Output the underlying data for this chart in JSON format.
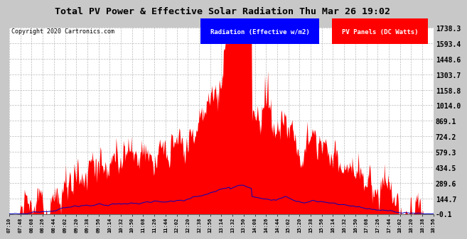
{
  "title": "Total PV Power & Effective Solar Radiation Thu Mar 26 19:02",
  "copyright": "Copyright 2020 Cartronics.com",
  "legend_radiation": "Radiation (Effective w/m2)",
  "legend_pv": "PV Panels (DC Watts)",
  "legend_radiation_bg": "#0000ff",
  "legend_pv_bg": "#ff0000",
  "radiation_color": "#0000bb",
  "pv_color": "#ff0000",
  "plot_bg": "#ffffff",
  "grid_color": "#aaaaaa",
  "fig_bg": "#c8c8c8",
  "ytick_labels": [
    "1738.3",
    "1593.4",
    "1448.6",
    "1303.7",
    "1158.8",
    "1014.0",
    "869.1",
    "724.2",
    "579.3",
    "434.5",
    "289.6",
    "144.7",
    "-0.1"
  ],
  "ytick_values": [
    1738.3,
    1593.4,
    1448.6,
    1303.7,
    1158.8,
    1014.0,
    869.1,
    724.2,
    579.3,
    434.5,
    289.6,
    144.7,
    -0.1
  ],
  "ymin": -0.1,
  "ymax": 1738.3,
  "xtick_labels": [
    "07:10",
    "07:48",
    "08:08",
    "08:26",
    "08:44",
    "09:02",
    "09:20",
    "09:38",
    "09:56",
    "10:14",
    "10:32",
    "10:50",
    "11:08",
    "11:26",
    "11:44",
    "12:02",
    "12:20",
    "12:38",
    "12:56",
    "13:14",
    "13:32",
    "13:50",
    "14:08",
    "14:26",
    "14:44",
    "15:02",
    "15:20",
    "15:38",
    "15:56",
    "16:14",
    "16:32",
    "16:50",
    "17:08",
    "17:26",
    "17:44",
    "18:02",
    "18:20",
    "18:38",
    "18:56"
  ]
}
